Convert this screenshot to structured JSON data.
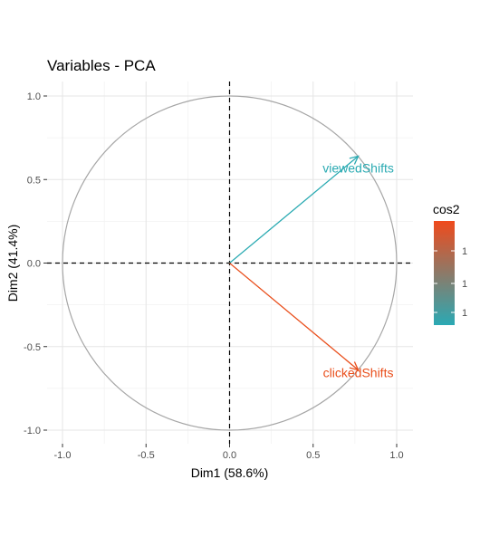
{
  "chart_data": {
    "type": "scatter",
    "title": "Variables - PCA",
    "xlabel": "Dim1 (58.6%)",
    "ylabel": "Dim2 (41.4%)",
    "xlim": [
      -1.0,
      1.0
    ],
    "ylim": [
      -1.0,
      1.0
    ],
    "xticks": [
      -1.0,
      -0.5,
      0.0,
      0.5,
      1.0
    ],
    "yticks": [
      -1.0,
      -0.5,
      0.0,
      0.5,
      1.0
    ],
    "xtick_labels": [
      "-1.0",
      "-0.5",
      "0.0",
      "0.5",
      "1.0"
    ],
    "ytick_labels": [
      "-1.0",
      "-0.5",
      "0.0",
      "0.5",
      "1.0"
    ],
    "grid": true,
    "correlation_circle": true,
    "reference_lines": [
      0,
      0
    ],
    "variables": [
      {
        "label": "viewedShifts",
        "x": 0.77,
        "y": 0.64,
        "color": "#2AAAB2"
      },
      {
        "label": "clickedShifts",
        "x": 0.77,
        "y": -0.64,
        "color": "#E94E1B"
      }
    ],
    "legend": {
      "title": "cos2",
      "position": "right",
      "gradient_top": "#F04A1C",
      "gradient_bottom": "#2AA9B4",
      "labels": [
        "1",
        "1",
        "1"
      ]
    }
  }
}
